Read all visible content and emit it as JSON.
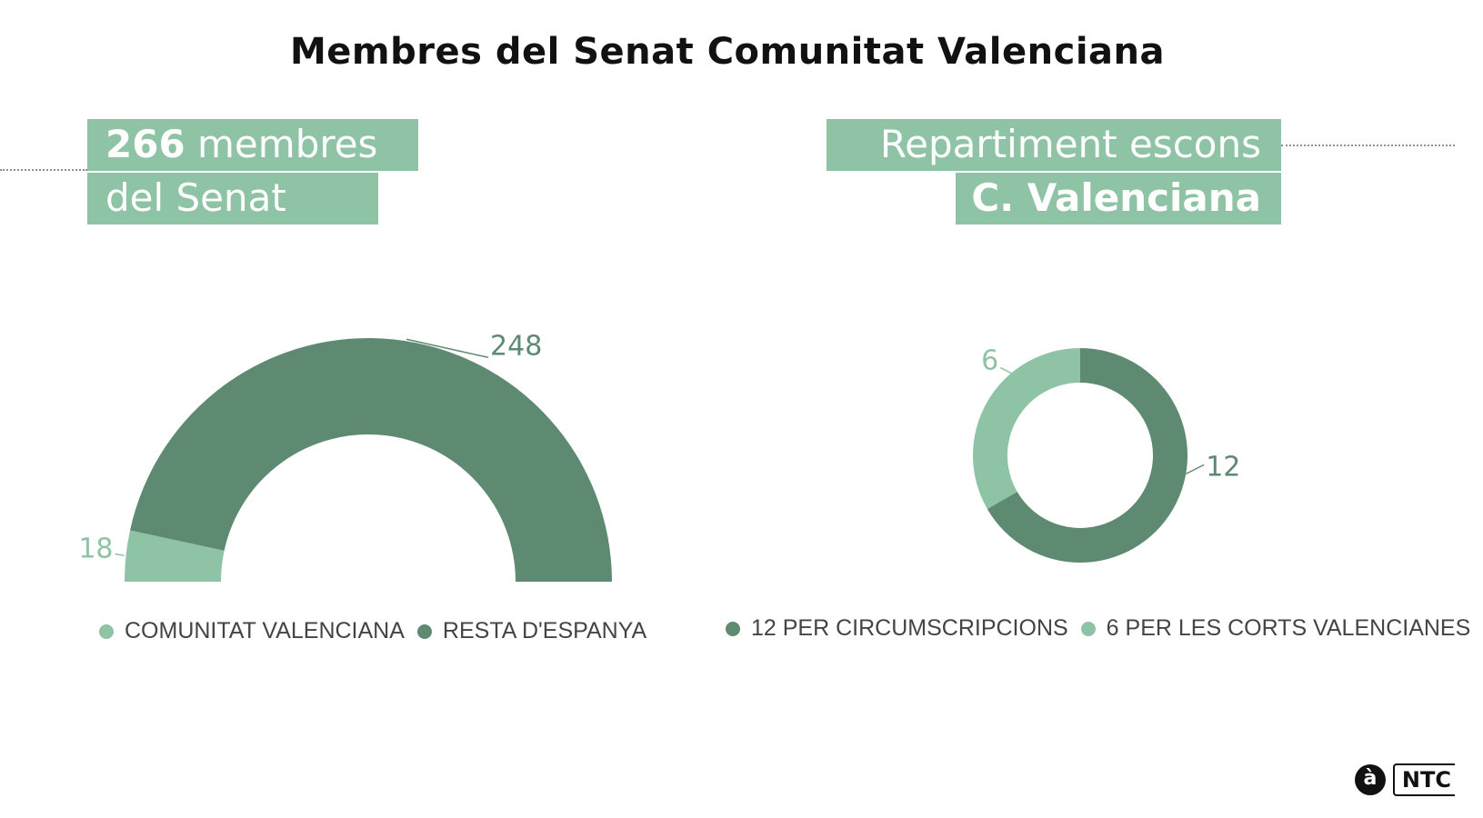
{
  "title": "Membres del Senat Comunitat Valenciana",
  "left_panel": {
    "label_line1_bold": "266",
    "label_line1_rest": " membres",
    "label_line2": "del Senat"
  },
  "right_panel": {
    "label_line1": "Repartiment escons",
    "label_line2": "C. Valenciana"
  },
  "colors": {
    "light_green": "#8fc3a5",
    "dark_green": "#5f8a72",
    "label_text": "#5c8a70",
    "light_label_text": "#8fc3a5"
  },
  "logo": {
    "mark": "à",
    "text": "NTC"
  },
  "chart_data": [
    {
      "type": "pie",
      "variant": "half-donut",
      "categories": [
        "COMUNITAT VALENCIANA",
        "RESTA D'ESPANYA"
      ],
      "values": [
        18,
        248
      ],
      "data_labels": [
        "18",
        "248"
      ],
      "colors": [
        "#8fc3a5",
        "#5f8a72"
      ],
      "legend": "bottom"
    },
    {
      "type": "pie",
      "variant": "donut",
      "categories": [
        "12 PER CIRCUMSCRIPCIONS",
        "6 PER LES CORTS VALENCIANES"
      ],
      "values": [
        12,
        6
      ],
      "data_labels": [
        "12",
        "6"
      ],
      "colors": [
        "#5f8a72",
        "#8fc3a5"
      ],
      "legend": "bottom"
    }
  ]
}
